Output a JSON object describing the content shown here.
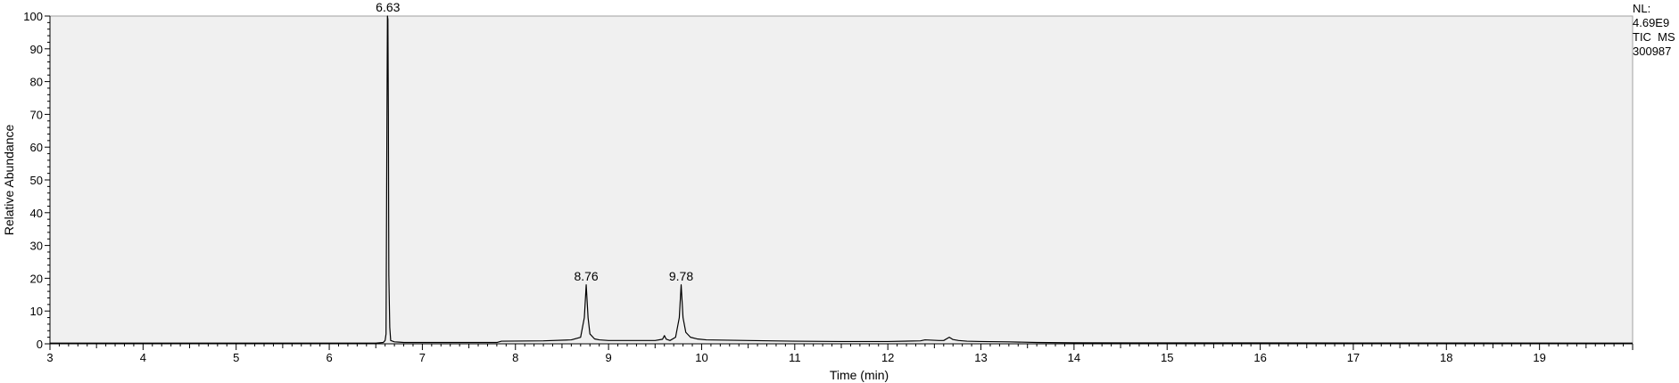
{
  "info": {
    "nl_label": "NL:",
    "nl_value": "4.69E9",
    "trace_type": "TIC  MS",
    "sample": "300987"
  },
  "chart_data": {
    "type": "line",
    "title": "",
    "xlabel": "Time (min)",
    "ylabel": "Relative Abundance",
    "xlim": [
      3,
      20
    ],
    "ylim": [
      0,
      100
    ],
    "x_ticks": [
      3,
      4,
      5,
      6,
      7,
      8,
      9,
      10,
      11,
      12,
      13,
      14,
      15,
      16,
      17,
      18,
      19
    ],
    "y_ticks": [
      0,
      10,
      20,
      30,
      40,
      50,
      60,
      70,
      80,
      90,
      100
    ],
    "grid": false,
    "plot_background": "#f0f0f0",
    "line_color": "#000000",
    "peaks": [
      {
        "label": "6.63",
        "x": 6.63,
        "y": 100
      },
      {
        "label": "8.76",
        "x": 8.76,
        "y": 18
      },
      {
        "label": "9.78",
        "x": 9.78,
        "y": 18
      }
    ],
    "series": [
      {
        "x": [
          3.0,
          6.5,
          6.58,
          6.6,
          6.61,
          6.62,
          6.625,
          6.63,
          6.635,
          6.64,
          6.65,
          6.66,
          6.7,
          6.75,
          6.8,
          7.8,
          7.85,
          8.3,
          8.6,
          8.7,
          8.74,
          8.76,
          8.78,
          8.8,
          8.85,
          8.9,
          9.0,
          9.5,
          9.58,
          9.6,
          9.62,
          9.66,
          9.72,
          9.76,
          9.78,
          9.8,
          9.83,
          9.88,
          9.95,
          10.05,
          10.5,
          11.0,
          11.5,
          12.0,
          12.35,
          12.4,
          12.55,
          12.6,
          12.66,
          12.7,
          12.76,
          12.85,
          13.0,
          13.3,
          13.6,
          14.0,
          20.0
        ],
        "y": [
          0.2,
          0.2,
          0.4,
          1.0,
          3.0,
          70.0,
          100.0,
          99.0,
          70.0,
          21.0,
          5.0,
          1.0,
          0.6,
          0.5,
          0.4,
          0.4,
          0.8,
          0.9,
          1.2,
          2.0,
          8.0,
          18.0,
          8.0,
          3.0,
          1.5,
          1.2,
          1.0,
          1.0,
          1.4,
          2.5,
          1.4,
          1.0,
          2.0,
          8.0,
          18.0,
          8.0,
          3.5,
          2.0,
          1.5,
          1.2,
          1.0,
          0.8,
          0.7,
          0.7,
          0.9,
          1.2,
          1.0,
          1.0,
          2.0,
          1.3,
          1.0,
          0.8,
          0.7,
          0.6,
          0.4,
          0.3,
          0.2
        ]
      }
    ]
  }
}
